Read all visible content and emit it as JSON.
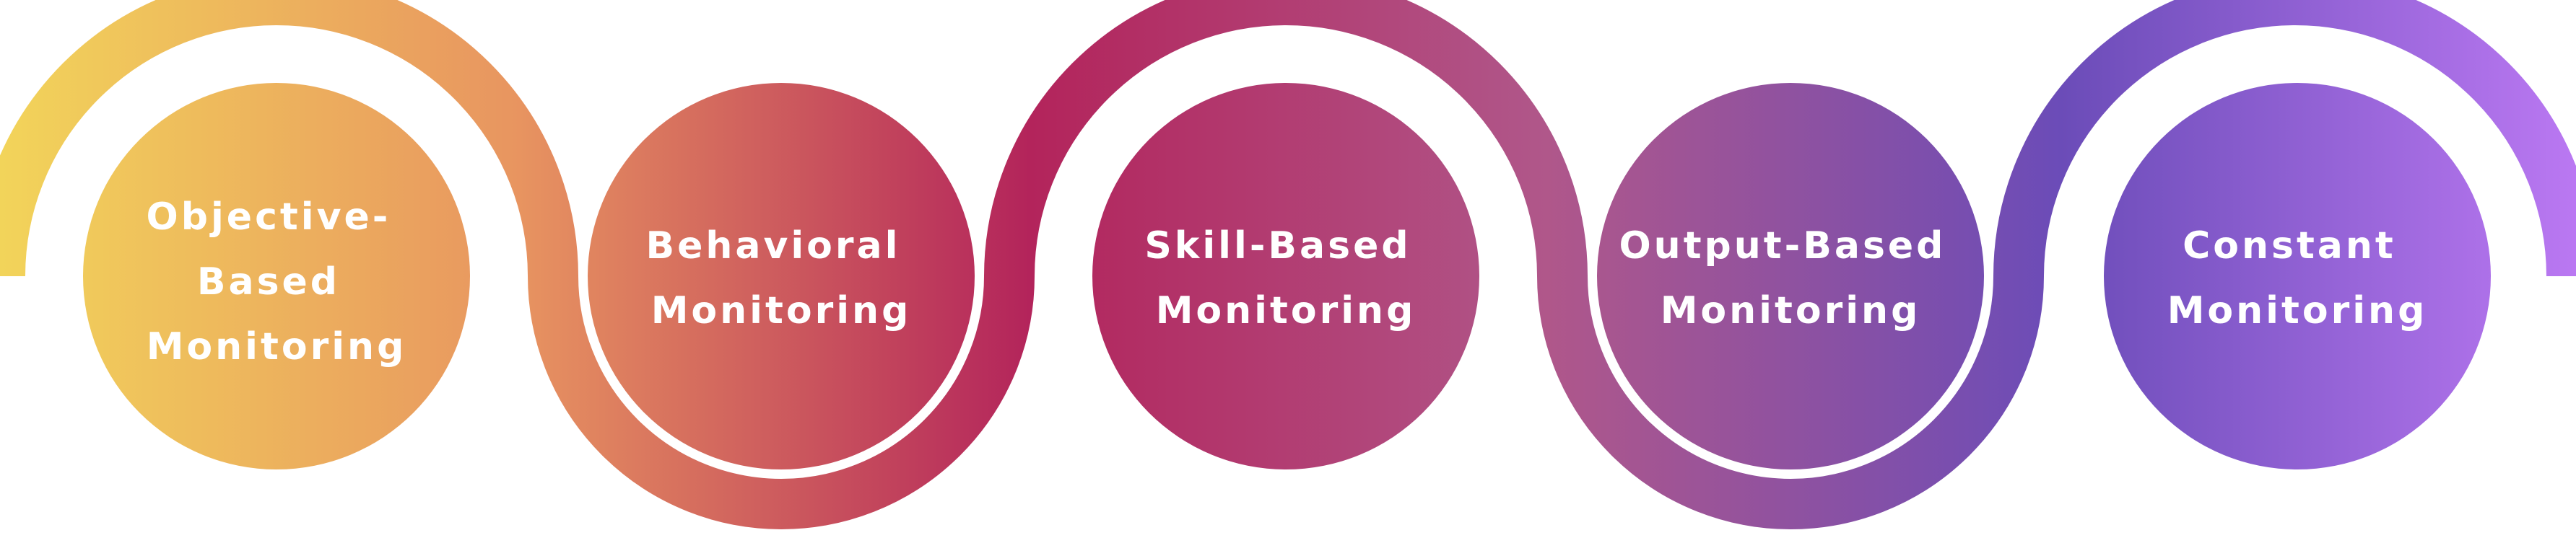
{
  "stages": [
    {
      "lines": [
        "Objective-",
        "Based",
        "Monitoring"
      ]
    },
    {
      "lines": [
        "Behavioral",
        "Monitoring"
      ]
    },
    {
      "lines": [
        "Skill-Based",
        "Monitoring"
      ]
    },
    {
      "lines": [
        "Output-Based",
        "Monitoring"
      ]
    },
    {
      "lines": [
        "Constant",
        "Monitoring"
      ]
    }
  ],
  "gradient_colors": [
    "#f2d45a",
    "#e89560",
    "#b3245b",
    "#b0578a",
    "#6b4cb8",
    "#ba78f2"
  ]
}
